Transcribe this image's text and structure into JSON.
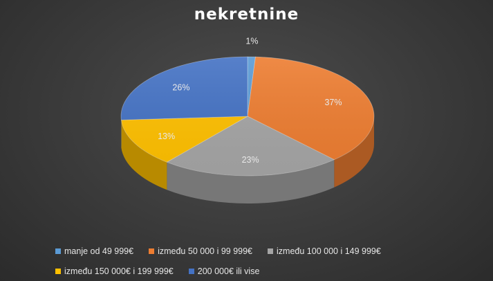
{
  "chart_data": {
    "type": "pie",
    "title": "nekretnine",
    "categories": [
      "manje od 49 999€",
      "između 50 000 i 99 999€",
      "između 100 000 i 149 999€",
      "između 150 000€ i 199 999€",
      "200 000€ ili vise"
    ],
    "values": [
      1,
      37,
      23,
      13,
      26
    ],
    "data_labels": [
      "1%",
      "37%",
      "23%",
      "13%",
      "26%"
    ],
    "colors": [
      "#5b9bd5",
      "#ed7d31",
      "#a5a5a5",
      "#ffc000",
      "#4472c4"
    ],
    "style": "3d",
    "legend_position": "bottom"
  }
}
